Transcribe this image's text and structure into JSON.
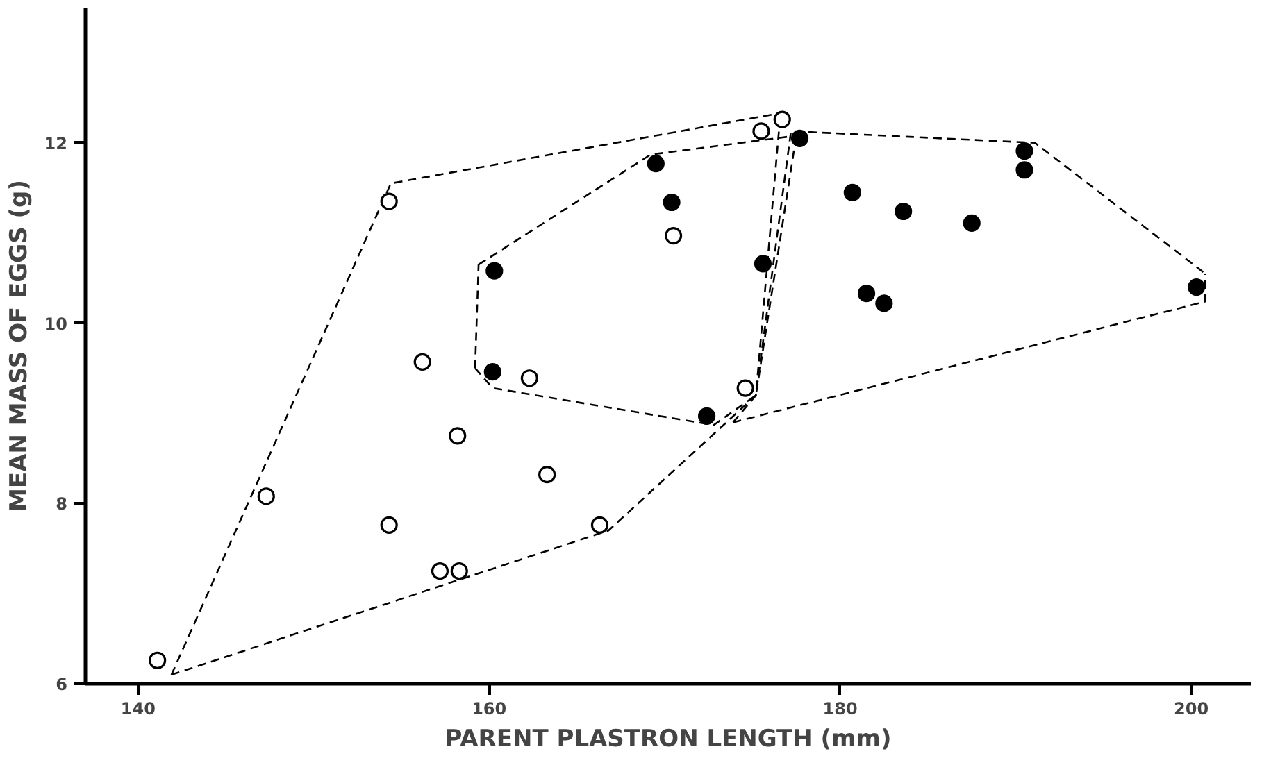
{
  "chart_data": {
    "type": "scatter",
    "xlabel": "PARENT PLASTRON LENGTH (mm)",
    "ylabel": "MEAN MASS OF EGGS (g)",
    "xlim": [
      137,
      203.4
    ],
    "ylim": [
      6,
      13.5
    ],
    "xticks": [
      140,
      160,
      180,
      200
    ],
    "yticks": [
      6,
      8,
      10,
      12
    ],
    "marker": "circle",
    "series": [
      {
        "type": "line",
        "line_style": "dashed",
        "marker": "none",
        "color": "#000000",
        "x": [
          141.9,
          154.4,
          176.6
        ],
        "values": [
          6.1,
          11.55,
          12.33
        ]
      },
      {
        "type": "line",
        "line_style": "dashed",
        "marker": "none",
        "color": "#000000",
        "x": [
          141.9,
          166.8,
          175.2,
          176.6
        ],
        "values": [
          6.1,
          7.7,
          9.2,
          12.33
        ]
      },
      {
        "type": "line",
        "line_style": "dashed",
        "marker": "none",
        "color": "#000000",
        "x": [
          159.4,
          169.2,
          177.5
        ],
        "values": [
          10.65,
          11.87,
          12.08
        ]
      },
      {
        "type": "line",
        "line_style": "dashed",
        "marker": "none",
        "color": "#000000",
        "x": [
          159.2,
          159.4
        ],
        "values": [
          9.5,
          10.65
        ]
      },
      {
        "type": "line",
        "line_style": "dashed",
        "marker": "none",
        "color": "#000000",
        "x": [
          159.2,
          160.2,
          172.8,
          175.2,
          177.5
        ],
        "values": [
          9.5,
          9.28,
          8.87,
          9.2,
          12.08
        ]
      },
      {
        "type": "line",
        "line_style": "dashed",
        "marker": "none",
        "color": "#000000",
        "x": [
          173.9,
          175.2,
          177.2,
          191.1,
          200.8
        ],
        "values": [
          8.9,
          9.2,
          12.13,
          12.0,
          10.55
        ]
      },
      {
        "type": "line",
        "line_style": "dashed",
        "marker": "none",
        "color": "#000000",
        "x": [
          173.9,
          200.8,
          200.8
        ],
        "values": [
          8.9,
          10.24,
          10.55
        ]
      },
      {
        "color": "#ffffff",
        "x": [
          141.1,
          154.3,
          156.2,
          162.3,
          158.2,
          163.3,
          147.3,
          154.3,
          157.2,
          158.3,
          166.3,
          170.5,
          175.5,
          176.7,
          174.6
        ],
        "values": [
          6.26,
          11.35,
          9.57,
          9.39,
          8.75,
          8.32,
          8.08,
          7.76,
          7.25,
          7.25,
          7.76,
          10.97,
          12.13,
          12.26,
          9.28
        ]
      },
      {
        "color": "#000000",
        "x": [
          160.3,
          160.2,
          169.5,
          170.4,
          177.7,
          175.6,
          172.4,
          180.7,
          183.6,
          187.5,
          181.5,
          182.5,
          190.5,
          190.5,
          200.3
        ],
        "values": [
          10.58,
          9.46,
          11.77,
          11.34,
          12.05,
          10.66,
          8.97,
          11.45,
          11.24,
          11.11,
          10.33,
          10.22,
          11.91,
          11.7,
          10.4
        ]
      }
    ]
  }
}
